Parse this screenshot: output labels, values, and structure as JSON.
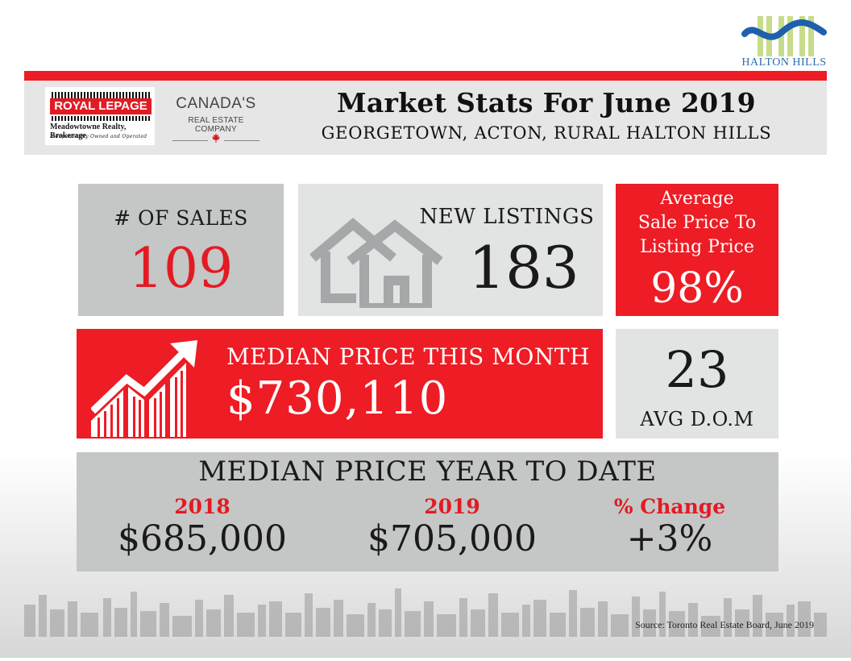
{
  "branding": {
    "halton_hills": "HALTON HILLS",
    "royal_lepage": "ROYAL LEPAGE",
    "brokerage": "Meadowtowne Realty, Brokerage",
    "tagline": "Independently Owned and Operated",
    "canada_line1": "CANADA'S",
    "canada_line2": "REAL ESTATE COMPANY"
  },
  "header": {
    "title": "Market Stats For June 2019",
    "subtitle": "GEORGETOWN, ACTON, RURAL HALTON HILLS"
  },
  "stats": {
    "sales_label": "# OF SALES",
    "sales_value": "109",
    "new_listings_label": "NEW LISTINGS",
    "new_listings_value": "183",
    "ratio_label_1": "Average",
    "ratio_label_2": "Sale Price To",
    "ratio_label_3": "Listing Price",
    "ratio_value": "98%",
    "median_month_label": "MEDIAN PRICE THIS MONTH",
    "median_month_value": "$730,110",
    "dom_value": "23",
    "dom_label": "AVG D.O.M"
  },
  "ytd": {
    "heading": "MEDIAN PRICE YEAR TO DATE",
    "col1_label": "2018",
    "col1_value": "$685,000",
    "col2_label": "2019",
    "col2_value": "$705,000",
    "col3_label": "% Change",
    "col3_value": "+3%"
  },
  "footer": {
    "source": "Source: Toronto Real Estate Board, June 2019"
  },
  "colors": {
    "accent_red": "#ee1c24",
    "tile_grey_dark": "#c5c6c6",
    "tile_grey_light": "#e2e3e3"
  }
}
